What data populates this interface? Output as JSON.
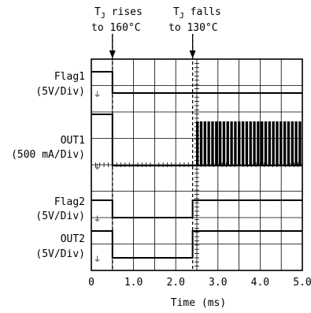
{
  "chart_data": {
    "type": "line",
    "xlim": [
      0,
      5
    ],
    "x_ticks": [
      "0",
      "1.0",
      "2.0",
      "3.0",
      "4.0",
      "5.0"
    ],
    "xlabel": "Time (ms)",
    "annotations": [
      {
        "line1": "T",
        "sub": "J",
        "rest": " rises",
        "line2": "to 160°C",
        "x": 0.5
      },
      {
        "line1": "T",
        "sub": "J",
        "rest": " falls",
        "line2": "to 130°C",
        "x": 2.4
      }
    ],
    "series": [
      {
        "name": "Flag1",
        "scale": "(5V/Div)",
        "points": [
          [
            0,
            1
          ],
          [
            0.5,
            1
          ],
          [
            0.5,
            0
          ],
          [
            5,
            0
          ]
        ]
      },
      {
        "name": "OUT1",
        "scale": "(500 mA/Div)",
        "points": [
          [
            0,
            1
          ],
          [
            0.5,
            1
          ],
          [
            0.5,
            0
          ],
          [
            2.4,
            0
          ]
        ],
        "pulses": {
          "start": 2.5,
          "end": 5.0,
          "period": 0.09,
          "width": 0.025
        }
      },
      {
        "name": "Flag2",
        "scale": "(5V/Div)",
        "points": [
          [
            0,
            1
          ],
          [
            0.5,
            1
          ],
          [
            0.5,
            0
          ],
          [
            2.4,
            0
          ],
          [
            2.4,
            1
          ],
          [
            5,
            1
          ]
        ]
      },
      {
        "name": "OUT2",
        "scale": "(5V/Div)",
        "points": [
          [
            0,
            1
          ],
          [
            0.5,
            1
          ],
          [
            0.5,
            0
          ],
          [
            2.4,
            0
          ],
          [
            2.4,
            1
          ],
          [
            5,
            1
          ]
        ]
      }
    ]
  }
}
